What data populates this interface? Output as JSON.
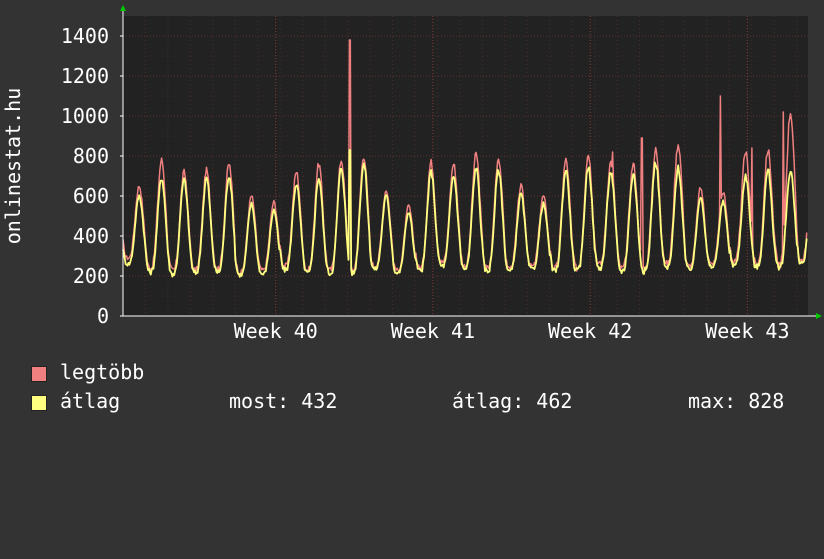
{
  "chart_data": {
    "type": "line",
    "ylabel": "onlinestat.hu",
    "ylim": [
      0,
      1500
    ],
    "yticks": [
      0,
      200,
      400,
      600,
      800,
      1000,
      1200,
      1400
    ],
    "ytick_labels": [
      "0",
      "200",
      "400",
      "600",
      "800",
      "1000",
      "1200",
      "1400"
    ],
    "x_range": [
      0,
      30.5
    ],
    "xticks": [
      {
        "label": "Week 40",
        "x": 6.8
      },
      {
        "label": "Week 41",
        "x": 13.8
      },
      {
        "label": "Week 42",
        "x": 20.8
      },
      {
        "label": "Week 43",
        "x": 27.8
      }
    ],
    "grid": true,
    "series": [
      {
        "name": "legtöbb",
        "color": "#f08080",
        "trough": [
          290,
          240,
          230,
          230,
          240,
          220,
          230,
          250,
          230,
          230,
          230,
          250,
          230,
          240,
          270,
          250,
          240,
          240,
          250,
          240,
          240,
          260,
          240,
          240,
          260,
          250,
          260,
          270,
          260,
          260,
          280
        ],
        "peak": [
          650,
          780,
          720,
          730,
          760,
          600,
          570,
          720,
          760,
          780,
          800,
          630,
          550,
          770,
          760,
          810,
          790,
          650,
          600,
          780,
          810,
          770,
          760,
          830,
          860,
          640,
          620,
          820,
          830,
          1020,
          850
        ],
        "spikes": [
          [
            10.1,
            1380
          ],
          [
            26.6,
            1100
          ],
          [
            28.0,
            840
          ],
          [
            29.4,
            1020
          ],
          [
            23.1,
            890
          ],
          [
            21.8,
            820
          ]
        ]
      },
      {
        "name": "átlag",
        "color": "#ffff80",
        "trough": [
          260,
          220,
          210,
          215,
          220,
          205,
          210,
          230,
          215,
          215,
          215,
          235,
          215,
          225,
          250,
          235,
          225,
          225,
          235,
          225,
          225,
          240,
          225,
          225,
          240,
          235,
          245,
          255,
          245,
          245,
          265
        ],
        "peak": [
          600,
          690,
          680,
          690,
          700,
          560,
          530,
          660,
          690,
          740,
          760,
          600,
          520,
          720,
          700,
          740,
          730,
          610,
          560,
          730,
          750,
          720,
          710,
          770,
          740,
          600,
          570,
          700,
          730,
          730,
          760
        ],
        "spikes": [
          [
            10.1,
            830
          ]
        ]
      }
    ]
  },
  "legend": {
    "max_label": "legtöbb",
    "avg_label": "átlag",
    "now_stat": "most: 432",
    "avg_stat": "átlag: 462",
    "max_stat": "max: 828"
  },
  "colors": {
    "background": "#333333",
    "plot_background": "#222222",
    "grid": "#5a3030",
    "axis": "#ffffff",
    "arrow": "#00cc00"
  }
}
